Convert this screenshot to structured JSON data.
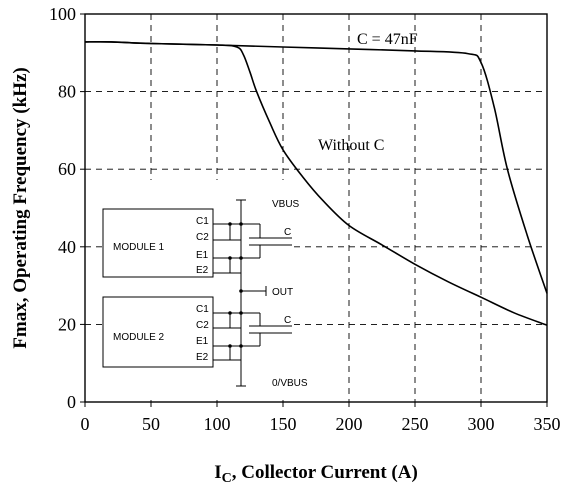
{
  "chart_data": {
    "type": "line",
    "title": "",
    "xlabel_main": "I",
    "xlabel_sub": "C",
    "xlabel_rest": ", Collector Current (A)",
    "ylabel": "Fmax, Operating Frequency (kHz)",
    "xlim": [
      0,
      350
    ],
    "ylim": [
      0,
      100
    ],
    "xticks": [
      "0",
      "50",
      "100",
      "150",
      "200",
      "250",
      "300",
      "350"
    ],
    "yticks": [
      "0",
      "20",
      "40",
      "60",
      "80",
      "100"
    ],
    "grid": true,
    "series": [
      {
        "name": "C = 47nF",
        "x": [
          0,
          20,
          50,
          100,
          150,
          200,
          250,
          290,
          300,
          310,
          320,
          335,
          350
        ],
        "y": [
          92.8,
          92.8,
          92.4,
          92.0,
          91.5,
          91.0,
          90.5,
          89.8,
          87.5,
          76,
          60,
          43,
          28
        ]
      },
      {
        "name": "Without C",
        "x": [
          0,
          20,
          50,
          100,
          115,
          120,
          125,
          130,
          140,
          150,
          165,
          180,
          200,
          225,
          250,
          275,
          300,
          325,
          350
        ],
        "y": [
          92.8,
          92.8,
          92.4,
          92.0,
          91.5,
          89.5,
          85,
          80,
          72,
          65,
          58,
          52,
          45.5,
          40.5,
          35.5,
          31.0,
          27.0,
          23.0,
          19.8
        ]
      }
    ],
    "annotations": [
      "C = 47nF",
      "Without C"
    ]
  },
  "schematic": {
    "module1": "MODULE 1",
    "module2": "MODULE 2",
    "pins1": [
      "C1",
      "C2",
      "E1",
      "E2"
    ],
    "pins2": [
      "C1",
      "C2",
      "E1",
      "E2"
    ],
    "vbus": "VBUS",
    "out": "OUT",
    "ground": "0/VBUS",
    "cap_top": "C",
    "cap_bottom": "C"
  }
}
